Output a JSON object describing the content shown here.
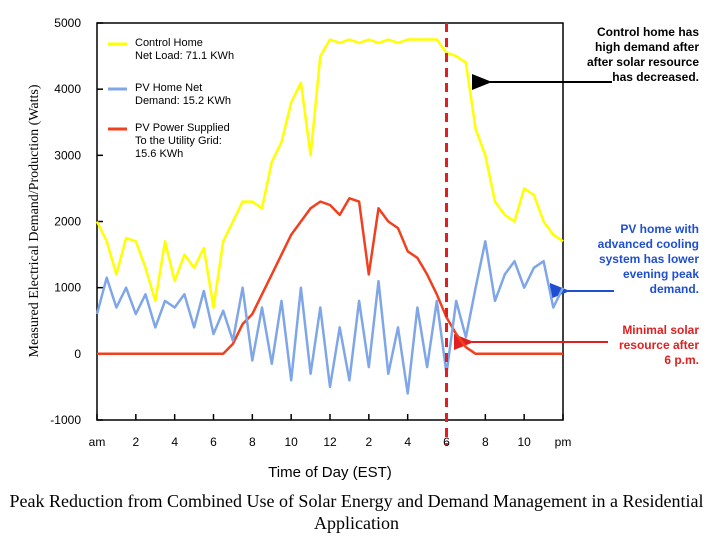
{
  "chart_data": {
    "type": "line",
    "caption": "Peak Reduction from Combined Use of Solar Energy and Demand Management in a Residential Application",
    "x_label": "Time of Day (EST)",
    "y_label": "Measured Electrical Demand/Production (Watts)",
    "x": [
      0,
      0.5,
      1,
      1.5,
      2,
      2.5,
      3,
      3.5,
      4,
      4.5,
      5,
      5.5,
      6,
      6.5,
      7,
      7.5,
      8,
      8.5,
      9,
      9.5,
      10,
      10.5,
      11,
      11.5,
      12,
      12.5,
      13,
      13.5,
      14,
      14.5,
      15,
      15.5,
      16,
      16.5,
      17,
      17.5,
      18,
      18.5,
      19,
      19.5,
      20,
      20.5,
      21,
      21.5,
      22,
      22.5,
      23,
      23.5,
      24
    ],
    "series": [
      {
        "name": "Control Home\nNet Load: 71.1 KWh",
        "color": "#ffff00",
        "values": [
          2000,
          1700,
          1200,
          1750,
          1700,
          1300,
          800,
          1700,
          1100,
          1500,
          1300,
          1600,
          700,
          1700,
          2000,
          2300,
          2300,
          2200,
          2900,
          3200,
          3800,
          4100,
          3000,
          4500,
          4750,
          4700,
          4750,
          4700,
          4750,
          4700,
          4750,
          4700,
          4750,
          4750,
          4750,
          4750,
          4550,
          4500,
          4400,
          3400,
          3000,
          2300,
          2100,
          2000,
          2500,
          2400,
          2000,
          1800,
          1700
        ]
      },
      {
        "name": "PV Home Net\nDemand: 15.2 KWh",
        "color": "#7fa6e8",
        "values": [
          600,
          1150,
          700,
          1000,
          600,
          900,
          400,
          800,
          700,
          900,
          400,
          950,
          300,
          650,
          200,
          1000,
          -100,
          700,
          -150,
          800,
          -400,
          1000,
          -300,
          700,
          -500,
          400,
          -400,
          800,
          -200,
          1100,
          -300,
          400,
          -600,
          700,
          -200,
          800,
          -300,
          800,
          250,
          1000,
          1700,
          800,
          1200,
          1400,
          1000,
          1300,
          1400,
          700,
          1000
        ]
      },
      {
        "name": "PV Power Supplied\nTo the Utility Grid:\n15.6 KWh",
        "color": "#f04020",
        "values": [
          0,
          0,
          0,
          0,
          0,
          0,
          0,
          0,
          0,
          0,
          0,
          0,
          0,
          0,
          150,
          450,
          600,
          900,
          1200,
          1500,
          1800,
          2000,
          2200,
          2300,
          2250,
          2100,
          2350,
          2300,
          1200,
          2200,
          2000,
          1900,
          1550,
          1450,
          1200,
          900,
          550,
          300,
          100,
          0,
          0,
          0,
          0,
          0,
          0,
          0,
          0,
          0,
          0
        ]
      }
    ],
    "xlim": [
      0,
      24
    ],
    "xticks": [
      {
        "value": 0,
        "label": "am"
      },
      2,
      4,
      6,
      8,
      10,
      12,
      {
        "value": 14,
        "label": "2"
      },
      {
        "value": 16,
        "label": "4"
      },
      {
        "value": 18,
        "label": "6"
      },
      {
        "value": 20,
        "label": "8"
      },
      {
        "value": 22,
        "label": "10"
      },
      {
        "value": 24,
        "label": "pm"
      }
    ],
    "ylim": [
      -1000,
      5000
    ],
    "yticks": [
      -1000,
      0,
      1000,
      2000,
      3000,
      4000,
      5000
    ],
    "vline": {
      "x": 18,
      "color": "#e02020"
    },
    "annotations": [
      {
        "text": "Control home has\nhigh demand after\nafter solar resource\nhas decreased.",
        "color": "#000000"
      },
      {
        "text": "PV home with\nadvanced cooling\nsystem has lower\nevening peak\ndemand.",
        "color": "#1f4fd0"
      },
      {
        "text": "Minimal solar\nresource after\n6 p.m.",
        "color": "#e02020"
      }
    ]
  }
}
